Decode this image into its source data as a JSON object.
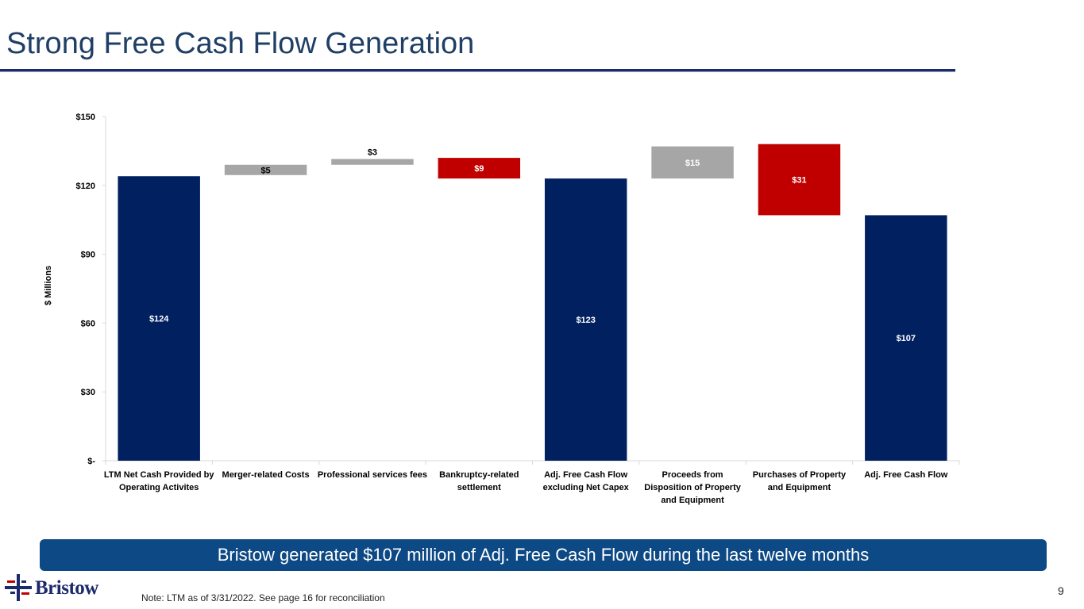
{
  "slide": {
    "title": "Strong Free Cash Flow Generation",
    "callout": "Bristow generated $107 million of Adj. Free Cash Flow during the last twelve months",
    "note": "Note: LTM as of 3/31/2022. See page 16 for reconciliation",
    "page_number": "9",
    "logo_text": "Bristow"
  },
  "colors": {
    "title": "#1f3f66",
    "total": "#002060",
    "gray": "#a6a6a6",
    "red": "#c00000",
    "callout_bg": "#0d4a85"
  },
  "chart_data": {
    "type": "waterfall",
    "ylabel": "$ Millions",
    "ylim": [
      0,
      150
    ],
    "yticks": [
      0,
      30,
      60,
      90,
      120,
      150
    ],
    "ytick_labels": [
      "$-",
      "$30",
      "$60",
      "$90",
      "$120",
      "$150"
    ],
    "bars": [
      {
        "category": [
          "LTM Net Cash Provided by",
          "Operating Activites"
        ],
        "label": "$124",
        "base": 0,
        "top": 124,
        "kind": "total",
        "label_pos": "inside-mid"
      },
      {
        "category": [
          "Merger-related Costs"
        ],
        "label": "$5",
        "base": 124.5,
        "top": 129,
        "kind": "gray",
        "label_pos": "inside"
      },
      {
        "category": [
          "Professional services fees"
        ],
        "label": "$3",
        "base": 129,
        "top": 131.5,
        "kind": "gray",
        "label_pos": "above"
      },
      {
        "category": [
          "Bankruptcy-related",
          "settlement"
        ],
        "label": "$9",
        "base": 123,
        "top": 132,
        "kind": "red",
        "label_pos": "inside"
      },
      {
        "category": [
          "Adj. Free Cash Flow",
          "excluding Net Capex"
        ],
        "label": "$123",
        "base": 0,
        "top": 123,
        "kind": "total",
        "label_pos": "inside-mid"
      },
      {
        "category": [
          "Proceeds from",
          "Disposition of Property",
          "and Equipment"
        ],
        "label": "$15",
        "base": 123,
        "top": 137,
        "kind": "gray",
        "label_pos": "inside"
      },
      {
        "category": [
          "Purchases of Property",
          "and Equipment"
        ],
        "label": "$31",
        "base": 107,
        "top": 138,
        "kind": "red",
        "label_pos": "inside"
      },
      {
        "category": [
          "Adj. Free Cash Flow"
        ],
        "label": "$107",
        "base": 0,
        "top": 107,
        "kind": "total",
        "label_pos": "inside-mid"
      }
    ]
  }
}
